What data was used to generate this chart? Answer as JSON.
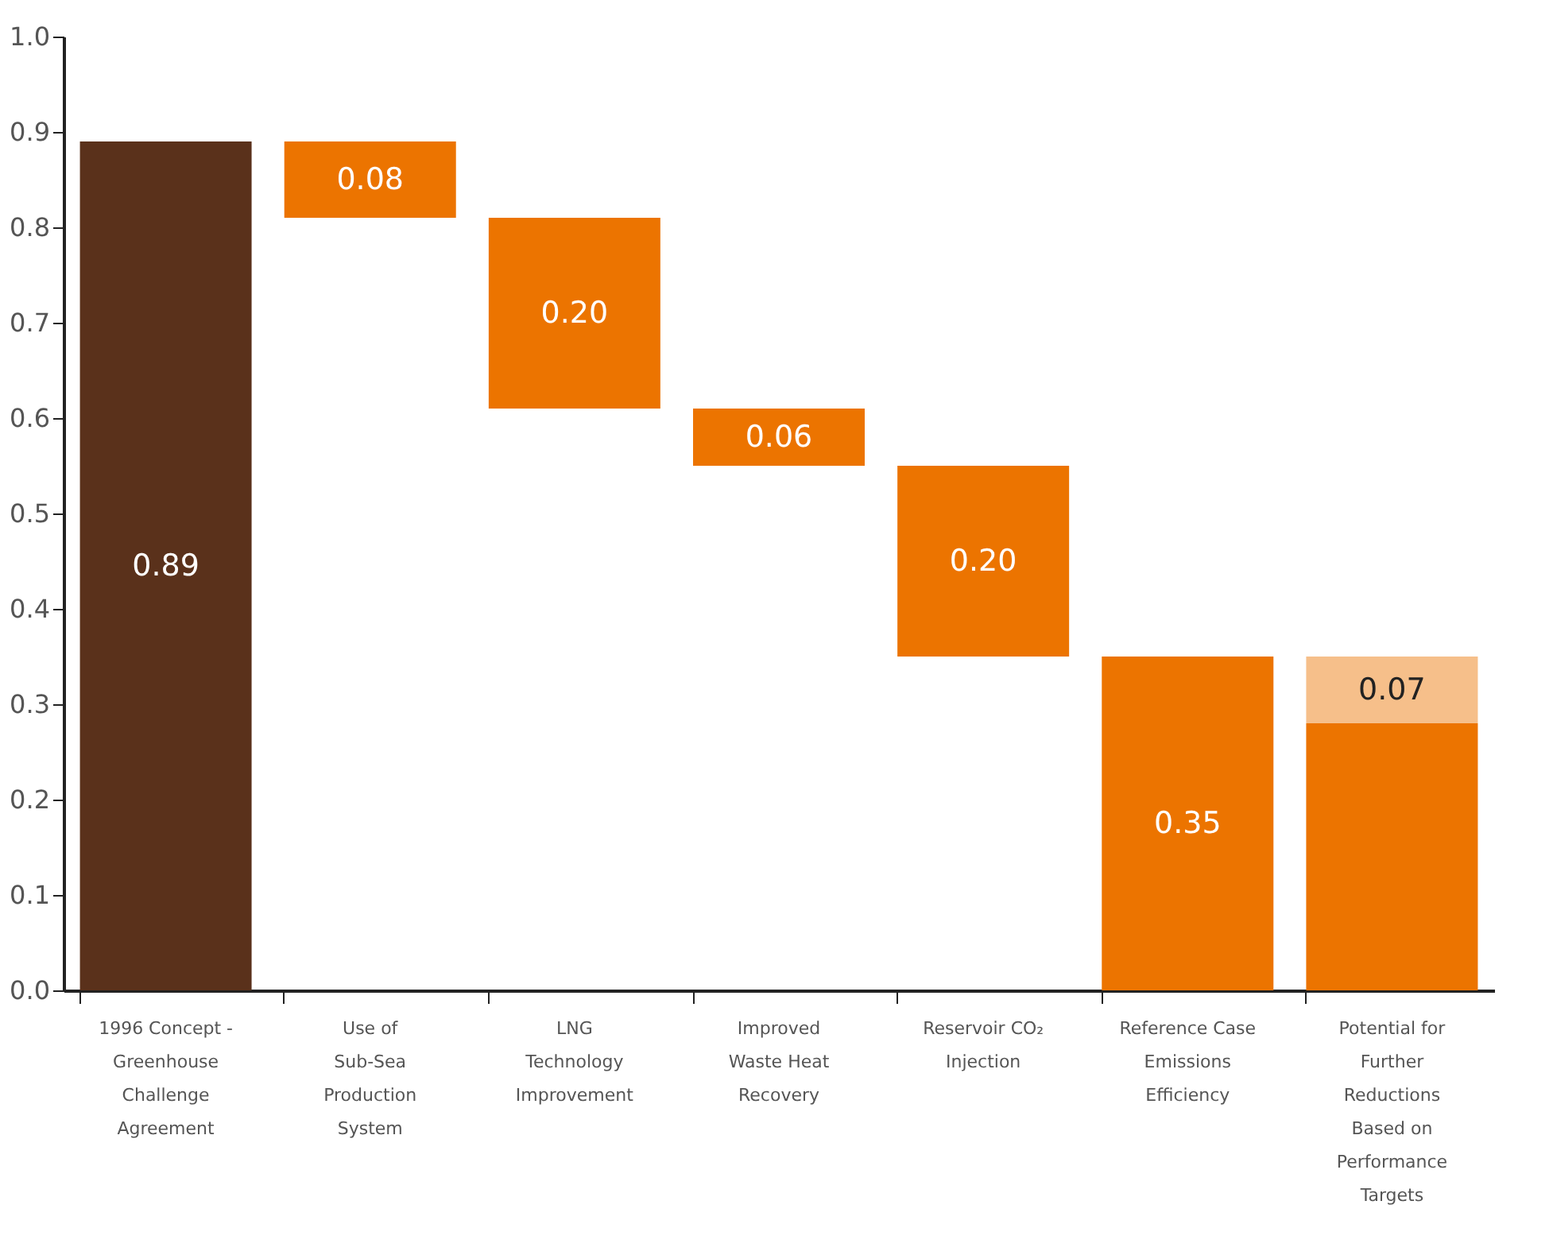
{
  "chart_data": {
    "type": "bar",
    "categories": [
      "1996 Concept -\nGreenhouse\nChallenge\nAgreement",
      "Use of\nSub-Sea\nProduction\nSystem",
      "LNG\nTechnology\nImprovement",
      "Improved\nWaste Heat\nRecovery",
      "Reservoir CO₂\nInjection",
      "Reference Case\nEmissions\nEfficiency",
      "Potential for\nFurther\nReductions\nBased on\nPerformance\nTargets"
    ],
    "series": [
      {
        "values": [
          0.89,
          0.08,
          0.2,
          0.06,
          0.2,
          0.35,
          0.28
        ],
        "base": [
          0,
          0.81,
          0.61,
          0.55,
          0.35,
          0,
          0
        ],
        "colors": [
          "#5a311b",
          "#ec7400",
          "#ec7400",
          "#ec7400",
          "#ec7400",
          "#ec7400",
          "#ec7400"
        ],
        "value_labels": [
          "0.89",
          "0.08",
          "0.20",
          "0.06",
          "0.20",
          "0.35",
          null
        ]
      },
      {
        "values": [
          null,
          null,
          null,
          null,
          null,
          null,
          0.07
        ],
        "base": [
          null,
          null,
          null,
          null,
          null,
          null,
          0.28
        ],
        "color": "#f6bf8a",
        "value_labels": [
          null,
          null,
          null,
          null,
          null,
          null,
          "0.07"
        ]
      }
    ],
    "ylim": [
      0,
      1.0
    ],
    "yticks": [
      {
        "value": 0,
        "label": "0.0"
      },
      0.1,
      0.2,
      0.3,
      0.4,
      0.5,
      0.6,
      0.7,
      0.8,
      0.9,
      {
        "value": 1.0,
        "label": "1.0"
      }
    ],
    "grid": false,
    "legend": false
  }
}
